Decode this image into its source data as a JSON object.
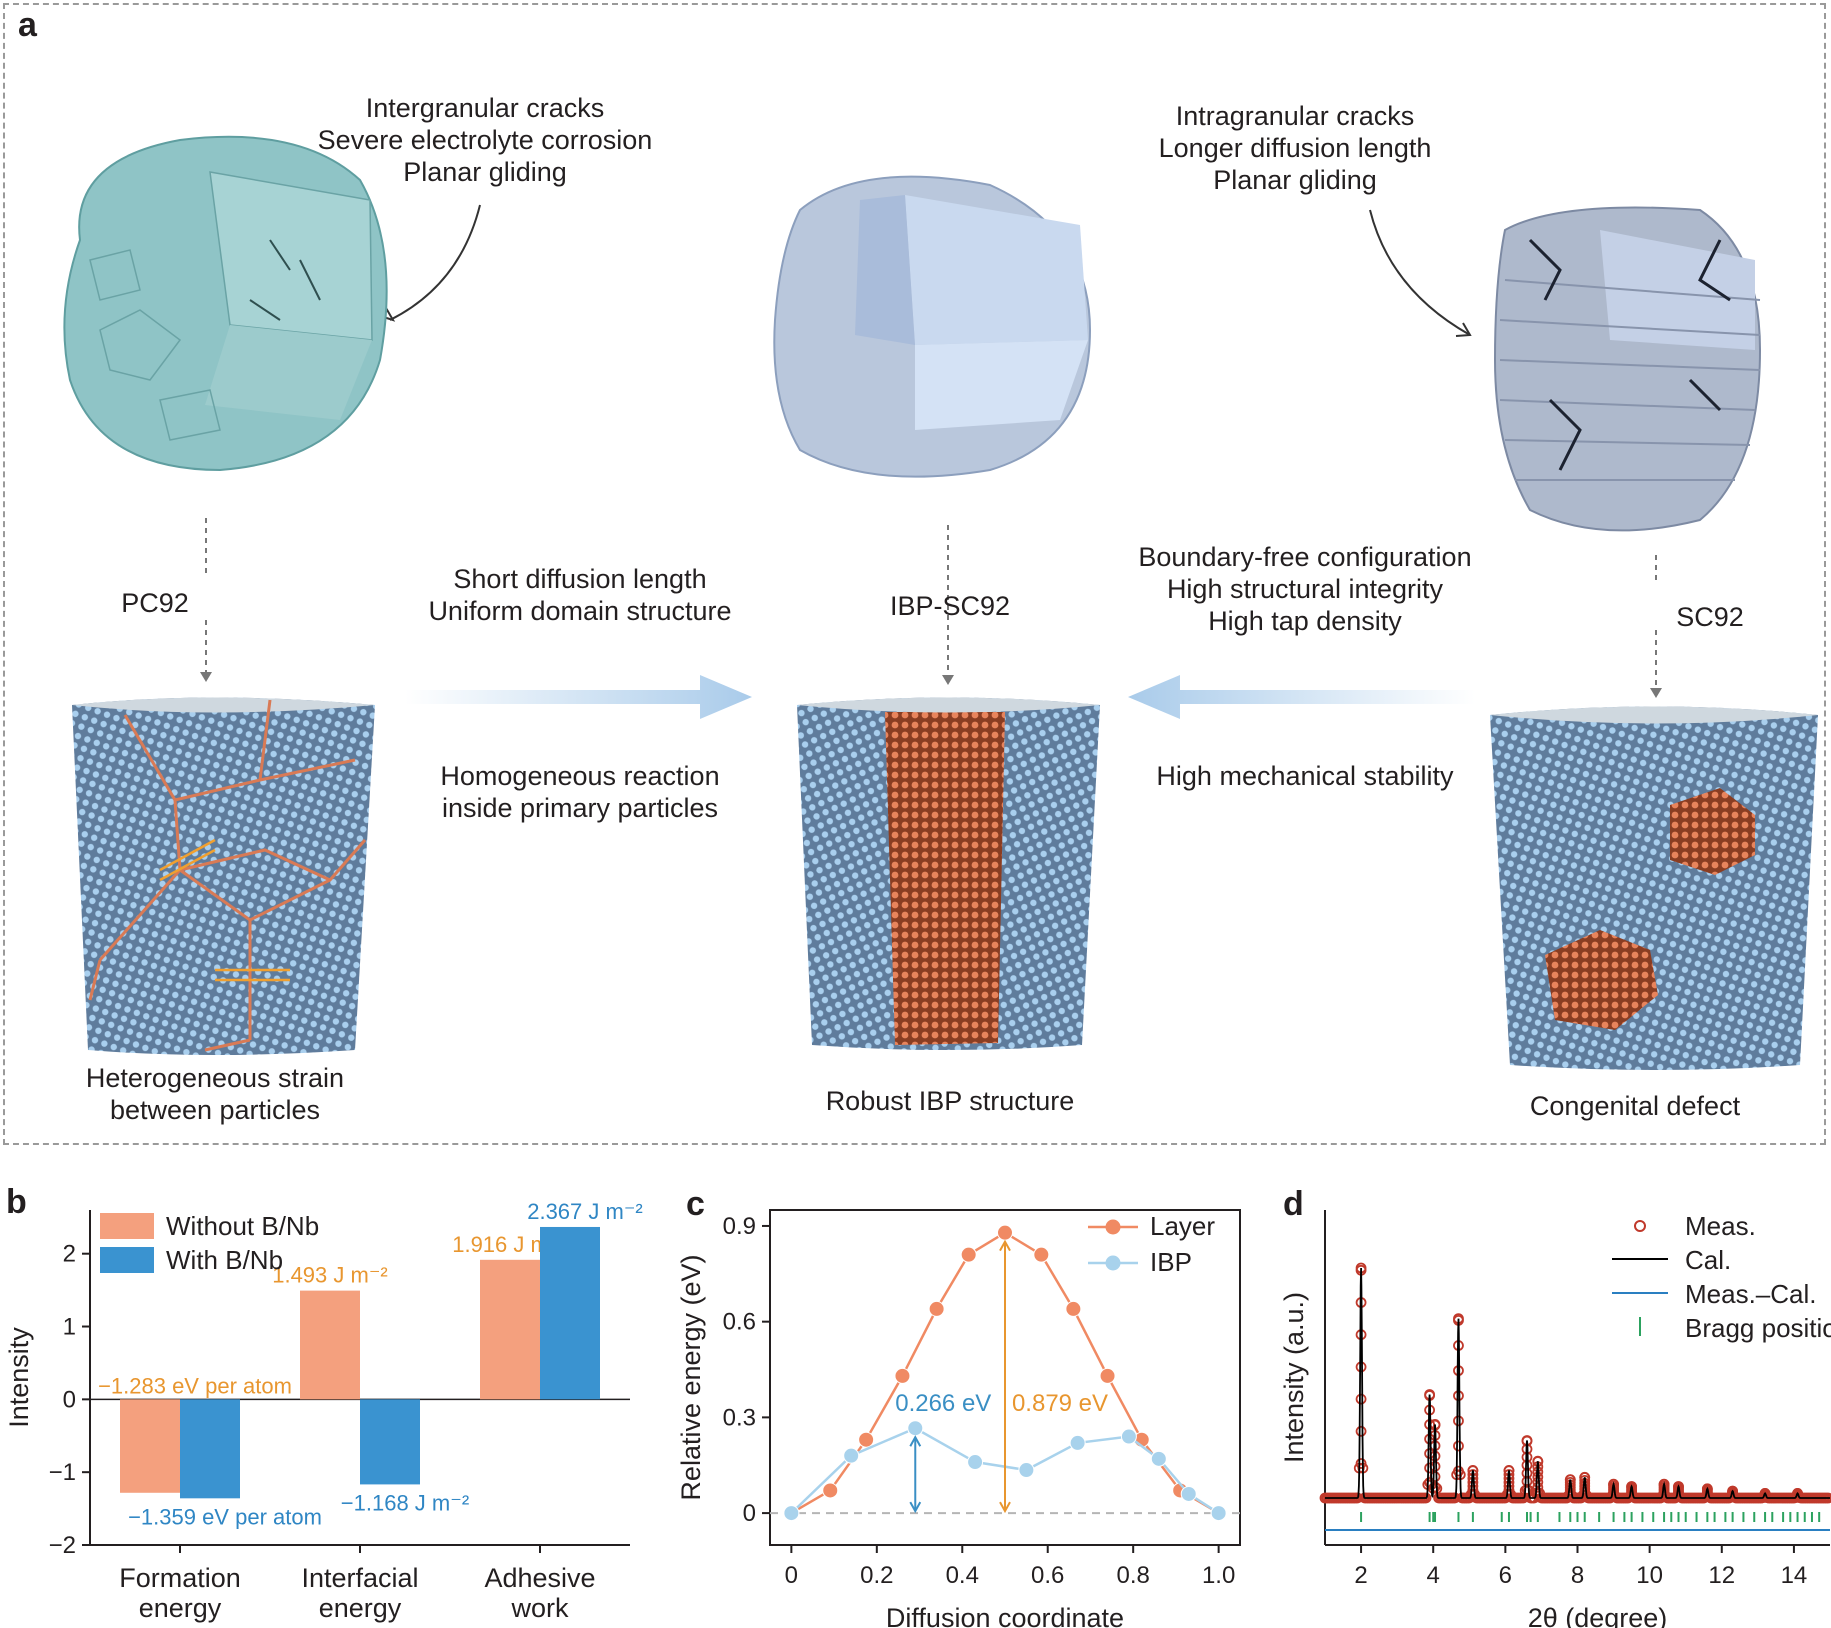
{
  "panel_a": {
    "label": "a",
    "pc92_caption": "Intergranular cracks\nSevere electrolyte corrosion\nPlanar gliding",
    "sc92_caption": "Intragranular cracks\nLonger diffusion length\nPlanar gliding",
    "pc92_name": "PC92",
    "ibp_name": "IBP-SC92",
    "sc92_name": "SC92",
    "left_arrow_top": "Short diffusion length\nUniform domain structure",
    "left_arrow_bottom": "Homogeneous reaction\ninside primary particles",
    "right_arrow_top": "Boundary-free configuration\nHigh structural integrity\nHigh tap density",
    "right_arrow_bottom": "High mechanical stability",
    "pc92_bottom": "Heterogeneous strain\nbetween particles",
    "ibp_bottom": "Robust IBP structure",
    "sc92_bottom": "Congenital defect",
    "colors": {
      "pc92_particle": "#8fc4c6",
      "ibp_particle": "#b9c7dc",
      "sc92_particle": "#aeb9cc",
      "lattice": "#8fb7dd",
      "boundary": "#d97a55",
      "arrow": "#a9cbea"
    }
  },
  "panel_b": {
    "label": "b"
  },
  "panel_c": {
    "label": "c"
  },
  "panel_d": {
    "label": "d"
  },
  "chart_data": [
    {
      "type": "bar",
      "panel": "b",
      "categories": [
        "Formation\nenergy",
        "Interfacial\nenergy",
        "Adhesive\nwork"
      ],
      "series": [
        {
          "name": "Without B/Nb",
          "color": "#f4a07e",
          "values": [
            -1.283,
            1.493,
            1.916
          ],
          "labels": [
            "−1.283 eV per atom",
            "1.493 J m⁻²",
            "1.916 J m⁻²"
          ],
          "label_color": "#e8962f"
        },
        {
          "name": "With B/Nb",
          "color": "#3a93d0",
          "values": [
            -1.359,
            -1.168,
            2.367
          ],
          "labels": [
            "−1.359 eV per atom",
            "−1.168 J m⁻²",
            "2.367 J m⁻²"
          ],
          "label_color": "#2f86c4"
        }
      ],
      "ylabel": "Intensity",
      "ylim": [
        -2,
        2.6
      ],
      "yticks": [
        -2,
        -1,
        0,
        1,
        2
      ],
      "ytick_labels": [
        "−2",
        "−1",
        "0",
        "1",
        "2"
      ]
    },
    {
      "type": "line",
      "panel": "c",
      "series": [
        {
          "name": "Layer",
          "color": "#f08a63",
          "x": [
            0,
            0.091,
            0.175,
            0.26,
            0.34,
            0.415,
            0.5,
            0.585,
            0.66,
            0.74,
            0.82,
            0.91,
            1.0
          ],
          "y": [
            0,
            0.071,
            0.23,
            0.43,
            0.64,
            0.81,
            0.879,
            0.81,
            0.64,
            0.43,
            0.23,
            0.071,
            0
          ]
        },
        {
          "name": "IBP",
          "color": "#a8d2ec",
          "x": [
            0,
            0.14,
            0.29,
            0.43,
            0.55,
            0.67,
            0.79,
            0.86,
            0.93,
            1.0
          ],
          "y": [
            0,
            0.18,
            0.266,
            0.16,
            0.135,
            0.22,
            0.24,
            0.17,
            0.06,
            0
          ]
        }
      ],
      "annotations": [
        {
          "text": "0.266 eV",
          "color": "#3a8fc4",
          "x": 0.29,
          "y": 0.266
        },
        {
          "text": "0.879 eV",
          "color": "#e8962f",
          "x": 0.5,
          "y": 0.879
        }
      ],
      "xlabel": "Diffusion coordinate",
      "ylabel": "Relative energy (eV)",
      "xlim": [
        -0.05,
        1.05
      ],
      "ylim": [
        -0.1,
        0.95
      ],
      "xticks": [
        0,
        0.2,
        0.4,
        0.6,
        0.8,
        1.0
      ],
      "xtick_labels": [
        "0",
        "0.2",
        "0.4",
        "0.6",
        "0.8",
        "1.0"
      ],
      "yticks": [
        0,
        0.3,
        0.6,
        0.9
      ],
      "ytick_labels": [
        "0",
        "0.3",
        "0.6",
        "0.9"
      ]
    },
    {
      "type": "scatter",
      "panel": "d",
      "series": [
        {
          "name": "Meas.",
          "color": "#c0392b",
          "marker": "open-circle"
        },
        {
          "name": "Cal.",
          "color": "#000000",
          "marker": "line"
        },
        {
          "name": "Meas.–Cal.",
          "color": "#2a7fc1",
          "marker": "line"
        },
        {
          "name": "Bragg position",
          "color": "#2ca25f",
          "marker": "tick"
        }
      ],
      "peaks": [
        {
          "x": 2.0,
          "h": 1.0
        },
        {
          "x": 3.9,
          "h": 0.45
        },
        {
          "x": 4.05,
          "h": 0.32
        },
        {
          "x": 4.7,
          "h": 0.78
        },
        {
          "x": 5.1,
          "h": 0.12
        },
        {
          "x": 6.1,
          "h": 0.12
        },
        {
          "x": 6.6,
          "h": 0.25
        },
        {
          "x": 6.9,
          "h": 0.16
        },
        {
          "x": 7.8,
          "h": 0.08
        },
        {
          "x": 8.2,
          "h": 0.09
        },
        {
          "x": 9.0,
          "h": 0.06
        },
        {
          "x": 9.5,
          "h": 0.05
        },
        {
          "x": 10.4,
          "h": 0.06
        },
        {
          "x": 10.8,
          "h": 0.05
        },
        {
          "x": 11.6,
          "h": 0.04
        },
        {
          "x": 12.3,
          "h": 0.03
        },
        {
          "x": 13.2,
          "h": 0.02
        },
        {
          "x": 14.1,
          "h": 0.02
        }
      ],
      "bragg_positions": [
        2.0,
        3.9,
        4.0,
        4.05,
        4.7,
        5.1,
        5.9,
        6.1,
        6.6,
        6.7,
        6.9,
        7.5,
        7.8,
        8.0,
        8.2,
        8.6,
        9.0,
        9.3,
        9.5,
        9.8,
        10.1,
        10.4,
        10.6,
        10.8,
        11.0,
        11.3,
        11.6,
        11.8,
        12.1,
        12.3,
        12.6,
        12.9,
        13.2,
        13.4,
        13.7,
        13.9,
        14.1,
        14.3,
        14.5,
        14.7
      ],
      "xlabel": "2θ (degree)",
      "ylabel": "Intensity (a.u.)",
      "xlim": [
        1,
        15
      ],
      "xticks": [
        2,
        4,
        6,
        8,
        10,
        12,
        14
      ],
      "xtick_labels": [
        "2",
        "4",
        "6",
        "8",
        "10",
        "12",
        "14"
      ]
    }
  ]
}
